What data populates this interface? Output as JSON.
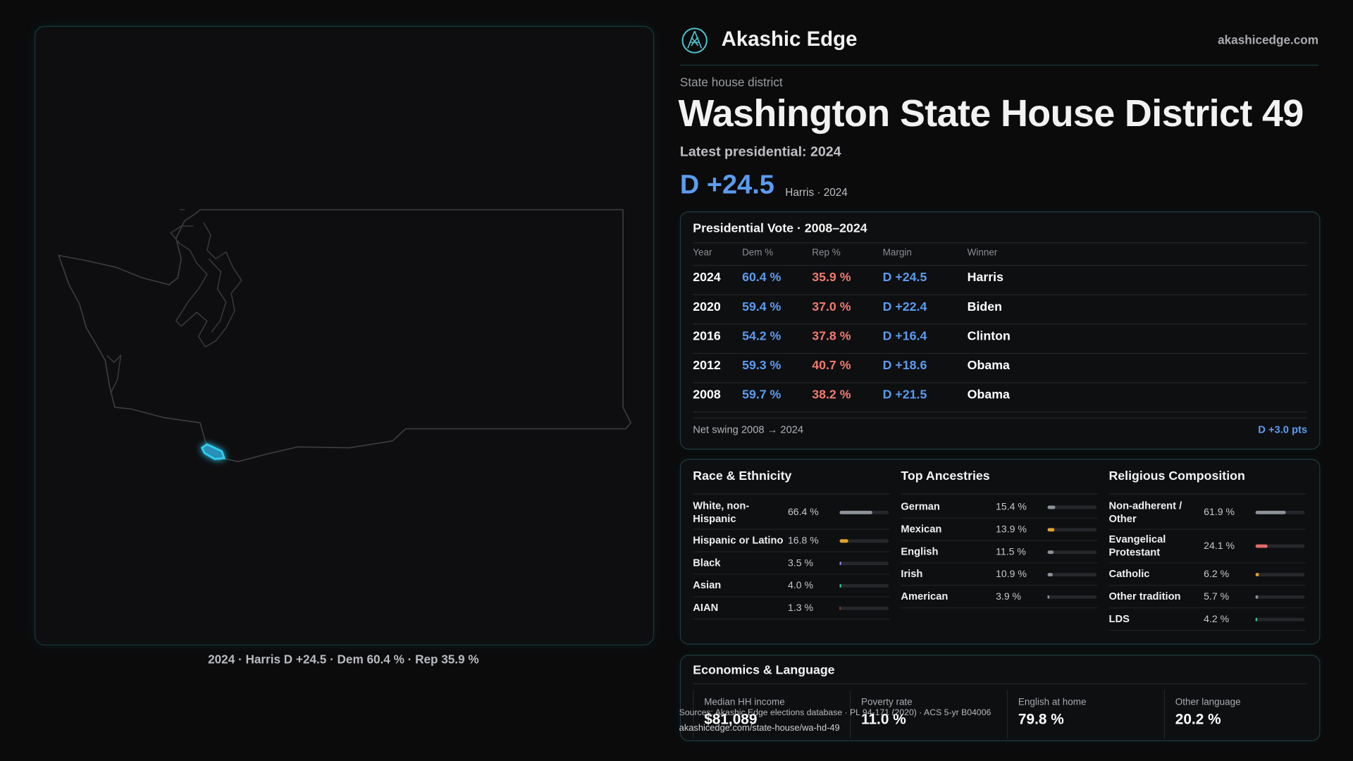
{
  "brand": {
    "name": "Akashic Edge",
    "site": "akashicedge.com"
  },
  "header": {
    "kicker": "State house district",
    "title": "Washington State House District 49",
    "latest": "Latest presidential: 2024",
    "margin": "D +24.5",
    "margin_note": "Harris · 2024"
  },
  "map": {
    "caption": "2024 · Harris D +24.5 · Dem 60.4 % · Rep 35.9 %"
  },
  "presidential": {
    "title": "Presidential Vote · 2008–2024",
    "columns": [
      "Year",
      "Dem %",
      "Rep %",
      "Margin",
      "Winner"
    ],
    "rows": [
      [
        "2024",
        "60.4 %",
        "35.9 %",
        "D +24.5",
        "Harris"
      ],
      [
        "2020",
        "59.4 %",
        "37.0 %",
        "D +22.4",
        "Biden"
      ],
      [
        "2016",
        "54.2 %",
        "37.8 %",
        "D +16.4",
        "Clinton"
      ],
      [
        "2012",
        "59.3 %",
        "40.7 %",
        "D +18.6",
        "Obama"
      ],
      [
        "2008",
        "59.7 %",
        "38.2 %",
        "D +21.5",
        "Obama"
      ]
    ],
    "swing_label": "Net swing 2008 → 2024",
    "swing_value": "D +3.0 pts"
  },
  "demographics": {
    "bar_range": [
      0,
      100
    ],
    "sections": [
      {
        "title": "Race & Ethnicity",
        "rows": [
          {
            "label": "White, non-Hispanic",
            "value": 66.4,
            "value_label": "66.4 %",
            "color": "#8d929a"
          },
          {
            "label": "Hispanic or Latino",
            "value": 16.8,
            "value_label": "16.8 %",
            "color": "#e3a22e"
          },
          {
            "label": "Black",
            "value": 3.5,
            "value_label": "3.5 %",
            "color": "#8c7fe6"
          },
          {
            "label": "Asian",
            "value": 4.0,
            "value_label": "4.0 %",
            "color": "#3cc39a"
          },
          {
            "label": "AIAN",
            "value": 1.3,
            "value_label": "1.3 %",
            "color": "#a4552f"
          }
        ]
      },
      {
        "title": "Top Ancestries",
        "rows": [
          {
            "label": "German",
            "value": 15.4,
            "value_label": "15.4 %",
            "color": "#8d929a"
          },
          {
            "label": "Mexican",
            "value": 13.9,
            "value_label": "13.9 %",
            "color": "#e3a22e"
          },
          {
            "label": "English",
            "value": 11.5,
            "value_label": "11.5 %",
            "color": "#8d929a"
          },
          {
            "label": "Irish",
            "value": 10.9,
            "value_label": "10.9 %",
            "color": "#8d929a"
          },
          {
            "label": "American",
            "value": 3.9,
            "value_label": "3.9 %",
            "color": "#8d929a"
          }
        ]
      },
      {
        "title": "Religious Composition",
        "rows": [
          {
            "label": "Non-adherent / Other",
            "value": 61.9,
            "value_label": "61.9 %",
            "color": "#8d929a"
          },
          {
            "label": "Evangelical Protestant",
            "value": 24.1,
            "value_label": "24.1 %",
            "color": "#e26a6a"
          },
          {
            "label": "Catholic",
            "value": 6.2,
            "value_label": "6.2 %",
            "color": "#e3a22e"
          },
          {
            "label": "Other tradition",
            "value": 5.7,
            "value_label": "5.7 %",
            "color": "#8d929a"
          },
          {
            "label": "LDS",
            "value": 4.2,
            "value_label": "4.2 %",
            "color": "#3cc39a"
          }
        ]
      }
    ]
  },
  "economics": {
    "title": "Economics & Language",
    "stats": [
      {
        "label": "Median HH income",
        "value": "$81,089"
      },
      {
        "label": "Poverty rate",
        "value": "11.0 %"
      },
      {
        "label": "English at home",
        "value": "79.8 %"
      },
      {
        "label": "Other language",
        "value": "20.2 %"
      }
    ]
  },
  "footer": {
    "sources": "Sources: Akashic Edge elections database · PL 94-171 (2020) · ACS 5-yr B04006",
    "url": "akashicedge.com/state-house/wa-hd-49"
  }
}
